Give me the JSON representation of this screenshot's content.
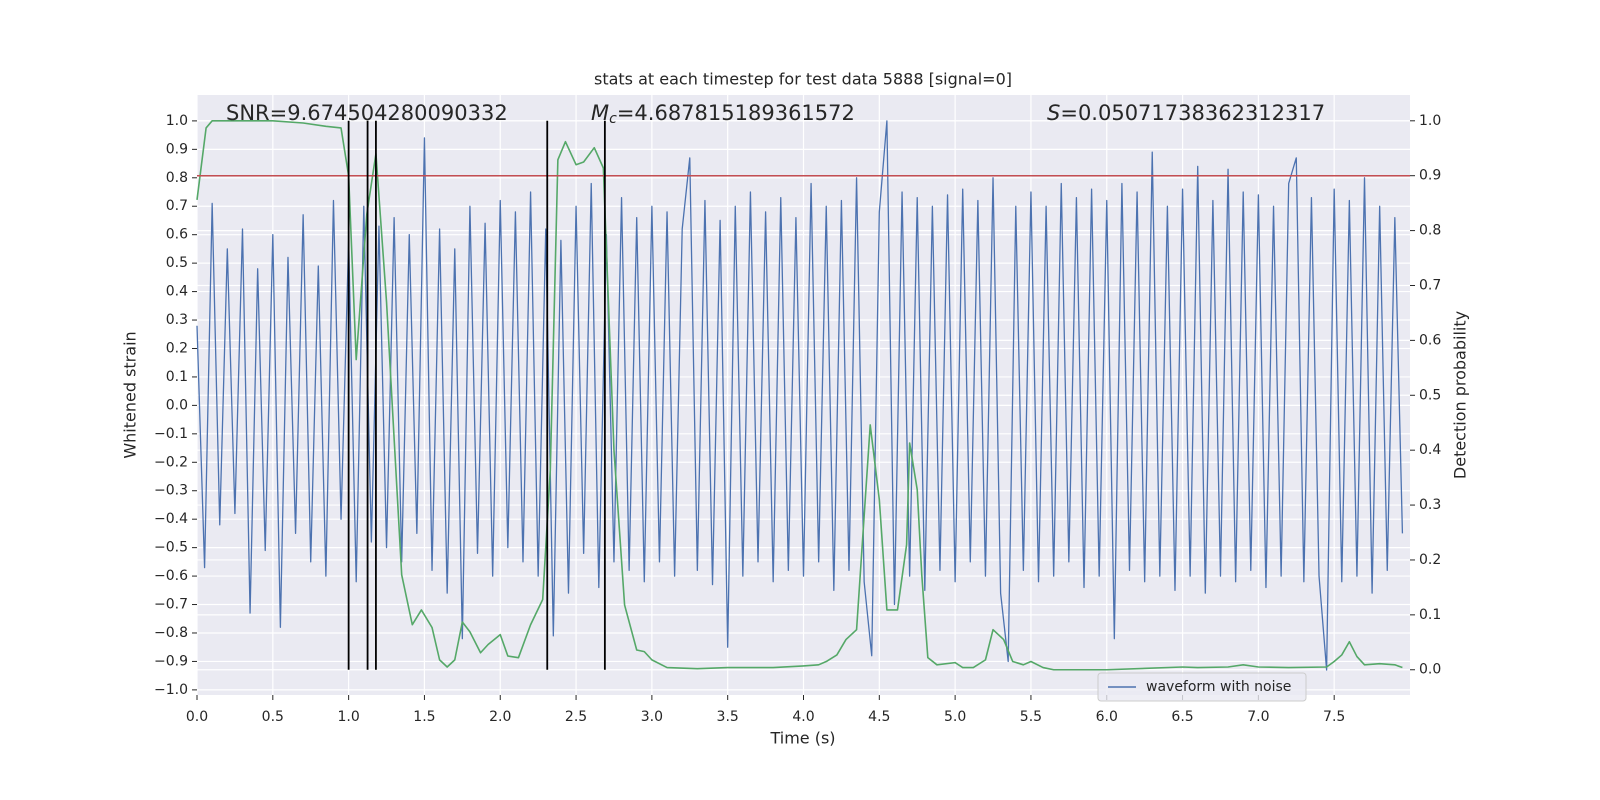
{
  "chart_data": {
    "type": "line",
    "title": "stats at each timestep for test data 5888 [signal=0]",
    "xlabel": "Time (s)",
    "ylabel": "Whitened strain",
    "y2label": "Detection probability",
    "annotations": [
      {
        "text": "SNR=9.674504280090332"
      },
      {
        "italic": "M",
        "sub": "c",
        "text": "=4.687815189361572"
      },
      {
        "italic": "S",
        "text": "=0.05071738362312317"
      }
    ],
    "xlim": [
      0,
      8.0
    ],
    "ylim": [
      -1.018,
      1.091
    ],
    "y2lim": [
      -0.046,
      1.047
    ],
    "xticks": [
      {
        "value": 0,
        "label": "0.0"
      },
      0.5,
      {
        "value": 1,
        "label": "1.0"
      },
      1.5,
      {
        "value": 2,
        "label": "2.0"
      },
      2.5,
      {
        "value": 3,
        "label": "3.0"
      },
      3.5,
      {
        "value": 4,
        "label": "4.0"
      },
      4.5,
      {
        "value": 5,
        "label": "5.0"
      },
      5.5,
      {
        "value": 6,
        "label": "6.0"
      },
      6.5,
      {
        "value": 7,
        "label": "7.0"
      },
      7.5
    ],
    "yticks": [
      {
        "value": -1,
        "label": "−1.0"
      },
      {
        "value": -0.9,
        "label": "−0.9"
      },
      {
        "value": -0.8,
        "label": "−0.8"
      },
      {
        "value": -0.7,
        "label": "−0.7"
      },
      {
        "value": -0.6,
        "label": "−0.6"
      },
      {
        "value": -0.5,
        "label": "−0.5"
      },
      {
        "value": -0.4,
        "label": "−0.4"
      },
      {
        "value": -0.3,
        "label": "−0.3"
      },
      {
        "value": -0.2,
        "label": "−0.2"
      },
      {
        "value": -0.1,
        "label": "−0.1"
      },
      {
        "value": 0,
        "label": "0.0"
      },
      0.1,
      0.2,
      0.3,
      0.4,
      0.5,
      0.6,
      0.7,
      0.8,
      0.9,
      {
        "value": 1,
        "label": "1.0"
      }
    ],
    "y2ticks": [
      {
        "value": 0,
        "label": "0.0"
      },
      0.1,
      0.2,
      0.3,
      0.4,
      0.5,
      0.6,
      0.7,
      0.8,
      0.9,
      {
        "value": 1,
        "label": "1.0"
      }
    ],
    "grid": true,
    "legend": "lower right",
    "threshold": 0.9,
    "threshold_color": "#c44e52",
    "vlines": [
      1.0,
      1.125,
      1.18,
      2.31,
      2.69
    ],
    "vline_color": "#000000",
    "series": [
      {
        "name": "waveform with noise",
        "color": "#4c72b0",
        "x": [
          0,
          0.05,
          0.1,
          0.15,
          0.2,
          0.25,
          0.3,
          0.35,
          0.4,
          0.45,
          0.5,
          0.55,
          0.6,
          0.65,
          0.7,
          0.75,
          0.8,
          0.85,
          0.9,
          0.95,
          1,
          1.05,
          1.1,
          1.15,
          1.2,
          1.25,
          1.3,
          1.35,
          1.4,
          1.45,
          1.5,
          1.55,
          1.6,
          1.65,
          1.7,
          1.75,
          1.8,
          1.85,
          1.9,
          1.95,
          2,
          2.05,
          2.1,
          2.15,
          2.2,
          2.25,
          2.3,
          2.35,
          2.4,
          2.45,
          2.5,
          2.55,
          2.6,
          2.65,
          2.7,
          2.75,
          2.8,
          2.85,
          2.9,
          2.95,
          3,
          3.05,
          3.1,
          3.15,
          3.2,
          3.25,
          3.3,
          3.35,
          3.4,
          3.45,
          3.5,
          3.55,
          3.6,
          3.65,
          3.7,
          3.75,
          3.8,
          3.85,
          3.9,
          3.95,
          4,
          4.05,
          4.1,
          4.15,
          4.2,
          4.25,
          4.3,
          4.35,
          4.4,
          4.45,
          4.5,
          4.55,
          4.6,
          4.65,
          4.7,
          4.75,
          4.8,
          4.85,
          4.9,
          4.95,
          5,
          5.05,
          5.1,
          5.15,
          5.2,
          5.25,
          5.3,
          5.35,
          5.4,
          5.45,
          5.5,
          5.55,
          5.6,
          5.65,
          5.7,
          5.75,
          5.8,
          5.85,
          5.9,
          5.95,
          6,
          6.05,
          6.1,
          6.15,
          6.2,
          6.25,
          6.3,
          6.35,
          6.4,
          6.45,
          6.5,
          6.55,
          6.6,
          6.65,
          6.7,
          6.75,
          6.8,
          6.85,
          6.9,
          6.95,
          7,
          7.05,
          7.1,
          7.15,
          7.2,
          7.25,
          7.3,
          7.35,
          7.4,
          7.45,
          7.5,
          7.55,
          7.6,
          7.65,
          7.7,
          7.75,
          7.8,
          7.85,
          7.9,
          7.95
        ],
        "values": [
          0.28,
          -0.57,
          0.71,
          -0.42,
          0.55,
          -0.38,
          0.62,
          -0.73,
          0.48,
          -0.51,
          0.6,
          -0.78,
          0.52,
          -0.45,
          0.67,
          -0.55,
          0.49,
          -0.6,
          0.72,
          -0.4,
          0.58,
          -0.62,
          0.7,
          -0.48,
          0.63,
          -0.5,
          0.66,
          -0.55,
          0.6,
          -0.45,
          0.94,
          -0.58,
          0.62,
          -0.66,
          0.55,
          -0.82,
          0.7,
          -0.52,
          0.64,
          -0.6,
          0.72,
          -0.5,
          0.68,
          -0.55,
          0.75,
          -0.6,
          0.62,
          -0.81,
          0.58,
          -0.66,
          0.7,
          -0.52,
          0.78,
          -0.64,
          0.6,
          -0.55,
          0.73,
          -0.58,
          0.66,
          -0.62,
          0.7,
          -0.55,
          0.68,
          -0.6,
          0.62,
          0.87,
          -0.58,
          0.72,
          -0.63,
          0.65,
          -0.85,
          0.7,
          -0.6,
          0.75,
          -0.55,
          0.68,
          -0.62,
          0.73,
          -0.58,
          0.66,
          -0.6,
          0.78,
          -0.55,
          0.7,
          -0.65,
          0.72,
          -0.58,
          0.8,
          -0.62,
          -0.88,
          0.68,
          1.0,
          -0.7,
          0.75,
          -0.6,
          0.73,
          -0.65,
          0.7,
          -0.58,
          0.74,
          -0.62,
          0.76,
          -0.55,
          0.72,
          -0.6,
          0.8,
          -0.66,
          -0.9,
          0.7,
          -0.58,
          0.75,
          -0.62,
          0.7,
          -0.6,
          0.78,
          -0.55,
          0.73,
          -0.64,
          0.76,
          -0.6,
          0.72,
          -0.82,
          0.78,
          -0.58,
          0.75,
          -0.62,
          0.89,
          -0.6,
          0.7,
          -0.65,
          0.76,
          -0.6,
          0.84,
          -0.66,
          0.72,
          -0.6,
          0.83,
          -0.62,
          0.75,
          -0.58,
          0.74,
          -0.64,
          0.7,
          -0.6,
          0.78,
          0.87,
          -0.62,
          0.73,
          -0.6,
          -0.93,
          0.76,
          -0.62,
          0.72,
          -0.6,
          0.8,
          -0.66,
          0.7,
          -0.58,
          0.66,
          -0.45
        ]
      },
      {
        "color": "#55a868",
        "axis": "y2",
        "x": [
          0,
          0.06,
          0.1,
          0.5,
          0.7,
          0.85,
          0.95,
          1.0,
          1.05,
          1.12,
          1.18,
          1.25,
          1.35,
          1.42,
          1.48,
          1.55,
          1.6,
          1.65,
          1.7,
          1.75,
          1.8,
          1.87,
          1.92,
          2.0,
          2.05,
          2.12,
          2.2,
          2.28,
          2.33,
          2.38,
          2.43,
          2.5,
          2.55,
          2.62,
          2.68,
          2.75,
          2.82,
          2.9,
          2.95,
          3.0,
          3.1,
          3.3,
          3.5,
          3.8,
          4.0,
          4.1,
          4.15,
          4.22,
          4.28,
          4.35,
          4.44,
          4.5,
          4.55,
          4.62,
          4.68,
          4.7,
          4.75,
          4.78,
          4.82,
          4.88,
          5.0,
          5.05,
          5.12,
          5.2,
          5.25,
          5.32,
          5.38,
          5.45,
          5.5,
          5.58,
          5.65,
          6.0,
          6.5,
          6.6,
          6.8,
          6.9,
          7.0,
          7.2,
          7.45,
          7.5,
          7.55,
          7.6,
          7.65,
          7.7,
          7.8,
          7.9,
          7.95
        ],
        "values": [
          0.856,
          0.987,
          1.0,
          1.0,
          0.996,
          0.99,
          0.987,
          0.9,
          0.565,
          0.83,
          0.94,
          0.67,
          0.173,
          0.082,
          0.109,
          0.077,
          0.018,
          0.005,
          0.018,
          0.087,
          0.069,
          0.031,
          0.046,
          0.064,
          0.025,
          0.022,
          0.082,
          0.128,
          0.364,
          0.929,
          0.962,
          0.92,
          0.925,
          0.951,
          0.914,
          0.4,
          0.118,
          0.036,
          0.033,
          0.018,
          0.004,
          0.002,
          0.004,
          0.004,
          0.007,
          0.009,
          0.015,
          0.027,
          0.055,
          0.073,
          0.446,
          0.31,
          0.109,
          0.109,
          0.228,
          0.413,
          0.328,
          0.173,
          0.022,
          0.009,
          0.013,
          0.004,
          0.004,
          0.018,
          0.073,
          0.055,
          0.015,
          0.009,
          0.015,
          0.004,
          0,
          0,
          0.005,
          0.004,
          0.005,
          0.009,
          0.005,
          0.004,
          0.005,
          0.015,
          0.027,
          0.051,
          0.024,
          0.009,
          0.011,
          0.009,
          0.004
        ]
      }
    ]
  }
}
